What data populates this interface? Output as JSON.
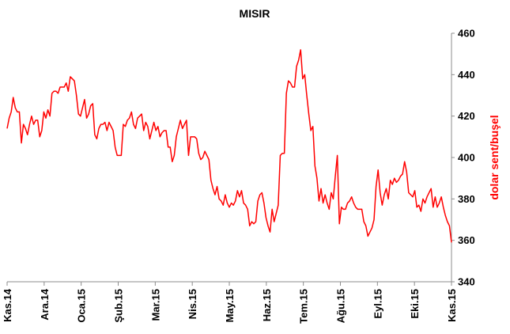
{
  "chart_data": {
    "type": "line",
    "title": "MISIR",
    "xlabel": "",
    "ylabel": "dolar sent/buşel",
    "ylim": [
      340,
      460
    ],
    "yticks": [
      340,
      360,
      380,
      400,
      420,
      440,
      460
    ],
    "y_axis_side": "right",
    "grid": false,
    "legend": "none",
    "xticks": [
      "Kas.14",
      "Ara.14",
      "Oca.15",
      "Şub.15",
      "Mar.15",
      "Nis.15",
      "May.15",
      "Haz.15",
      "Tem.15",
      "Ağu.15",
      "Eyl.15",
      "Eki.15",
      "Kas.15"
    ],
    "series": [
      {
        "name": "",
        "color": "#ff0000",
        "x_start": "Kas.14",
        "x_end": "Kas.15",
        "values": [
          414,
          419,
          422,
          429,
          424,
          422,
          422,
          407,
          416,
          414,
          411,
          416,
          420,
          416,
          418,
          418,
          410,
          413,
          422,
          419,
          423,
          420,
          431,
          432,
          432,
          431,
          434,
          434,
          434,
          436,
          432,
          439,
          438,
          437,
          430,
          421,
          420,
          424,
          428,
          419,
          421,
          425,
          426,
          411,
          409,
          414,
          416,
          416,
          417,
          413,
          417,
          415,
          413,
          405,
          401,
          401,
          401,
          416,
          415,
          418,
          419,
          422,
          416,
          414,
          419,
          420,
          421,
          413,
          417,
          415,
          409,
          413,
          417,
          413,
          415,
          410,
          412,
          413,
          413,
          405,
          405,
          398,
          401,
          410,
          414,
          418,
          414,
          416,
          418,
          401,
          410,
          410,
          410,
          409,
          402,
          399,
          400,
          403,
          401,
          399,
          389,
          385,
          382,
          386,
          380,
          379,
          377,
          382,
          378,
          376,
          378,
          377,
          379,
          384,
          381,
          384,
          378,
          377,
          375,
          367,
          369,
          368,
          369,
          379,
          382,
          383,
          378,
          371,
          367,
          364,
          375,
          369,
          373,
          377,
          401,
          402,
          402,
          431,
          437,
          436,
          434,
          434,
          444,
          447,
          452,
          438,
          440,
          430,
          421,
          413,
          415,
          396,
          390,
          379,
          385,
          378,
          382,
          378,
          375,
          383,
          380,
          391,
          401,
          368,
          376,
          375,
          375,
          378,
          379,
          381,
          378,
          376,
          375,
          375,
          375,
          369,
          367,
          362,
          364,
          366,
          370,
          386,
          394,
          383,
          377,
          382,
          385,
          380,
          389,
          387,
          390,
          388,
          389,
          391,
          392,
          398,
          393,
          383,
          382,
          381,
          384,
          376,
          377,
          374,
          380,
          378,
          381,
          383,
          385,
          376,
          381,
          376,
          378,
          381,
          376,
          372,
          369,
          367,
          359
        ]
      }
    ]
  }
}
